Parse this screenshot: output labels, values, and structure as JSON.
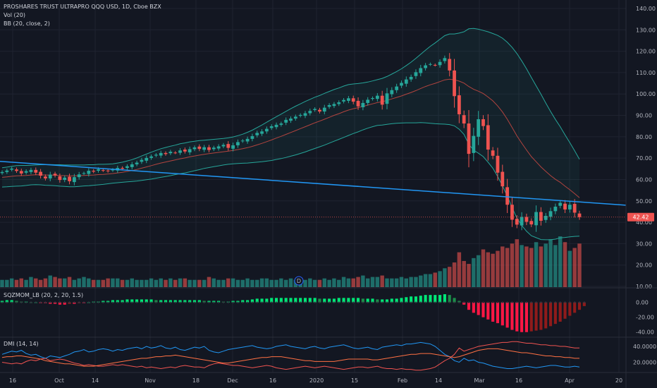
{
  "header": {
    "title": "PROSHARES TRUST ULTRAPRO QQQ USD, 1D, Cboe BZX",
    "vol_label": "Vol (20)",
    "bb_label": "BB (20, close, 2)",
    "sqz_label": "SQZMOM_LB (20, 2, 20, 1.5)",
    "dmi_label": "DMI (14, 14)"
  },
  "colors": {
    "background": "#131722",
    "up": "#26a69a",
    "down": "#ef5350",
    "trendline": "#2196f3",
    "bb_basis": "#b2443f",
    "bb_band": "#26a69a",
    "dmi_plus": "#2196f3",
    "dmi_minus": "#ef5350",
    "adx": "#ff7043"
  },
  "chart_data": [
    {
      "type": "candlestick",
      "title": "PROSHARES TRUST ULTRAPRO QQQ USD, 1D, Cboe BZX",
      "ylim": [
        10,
        140
      ],
      "y_ticks": [
        "140.00",
        "130.00",
        "120.00",
        "110.00",
        "100.00",
        "90.00",
        "80.00",
        "70.00",
        "60.00",
        "50.00",
        "40.00",
        "30.00",
        "20.00",
        "10.00"
      ],
      "x_ticks": [
        "16",
        "Oct",
        "14",
        "Nov",
        "18",
        "Dec",
        "16",
        "2020",
        "15",
        "Feb",
        "14",
        "Mar",
        "16",
        "Apr",
        "20"
      ],
      "last_price": "42.42",
      "closes": [
        63.5,
        64.2,
        65.1,
        64.0,
        62.8,
        63.9,
        64.5,
        63.2,
        61.8,
        60.5,
        62.3,
        61.9,
        59.8,
        60.9,
        59.2,
        61.1,
        62.4,
        63.0,
        64.1,
        63.7,
        64.8,
        64.2,
        63.9,
        64.6,
        65.4,
        65.0,
        66.2,
        67.1,
        67.9,
        69.2,
        70.1,
        70.8,
        71.6,
        72.4,
        71.9,
        73.0,
        72.5,
        73.6,
        73.1,
        74.2,
        75.0,
        74.3,
        75.1,
        73.8,
        74.9,
        75.5,
        76.2,
        74.8,
        76.0,
        77.5,
        78.2,
        79.0,
        80.3,
        81.8,
        82.5,
        83.7,
        84.9,
        85.6,
        86.2,
        87.9,
        88.5,
        89.4,
        90.2,
        91.0,
        92.1,
        93.0,
        91.8,
        93.6,
        94.8,
        95.3,
        96.1,
        97.2,
        98.0,
        96.4,
        94.2,
        95.8,
        97.3,
        98.1,
        99.2,
        95.0,
        100.3,
        101.8,
        103.5,
        105.2,
        106.8,
        108.0,
        110.2,
        112.1,
        113.4,
        114.0,
        113.5,
        115.0,
        116.8,
        111.0,
        99.0,
        90.5,
        86.2,
        72.0,
        80.4,
        88.2,
        85.0,
        74.0,
        71.1,
        63.2,
        56.8,
        48.2,
        41.2,
        38.9,
        42.5,
        40.2,
        39.0,
        44.8,
        40.7,
        43.0,
        45.2,
        47.3,
        49.1,
        46.0,
        48.2,
        44.5,
        42.4
      ],
      "bb_basis": [
        61.0,
        61.2,
        61.5,
        61.7,
        61.8,
        61.9,
        62.1,
        62.2,
        62.2,
        62.1,
        62.1,
        62.0,
        61.9,
        61.8,
        61.7,
        61.7,
        61.8,
        61.9,
        62.0,
        62.1,
        62.3,
        62.4,
        62.6,
        62.8,
        63.1,
        63.4,
        63.8,
        64.2,
        64.7,
        65.3,
        65.9,
        66.5,
        67.1,
        67.7,
        68.2,
        68.7,
        69.2,
        69.7,
        70.1,
        70.6,
        71.0,
        71.4,
        71.8,
        72.1,
        72.4,
        72.7,
        73.0,
        73.3,
        73.6,
        74.0,
        74.4,
        74.9,
        75.5,
        76.2,
        76.9,
        77.7,
        78.5,
        79.4,
        80.2,
        81.1,
        82.0,
        82.9,
        83.8,
        84.7,
        85.6,
        86.5,
        87.3,
        88.2,
        89.1,
        90.0,
        90.8,
        91.7,
        92.5,
        93.1,
        93.6,
        94.2,
        94.8,
        95.4,
        96.0,
        96.4,
        97.0,
        97.7,
        98.4,
        99.1,
        99.9,
        100.7,
        101.6,
        102.6,
        103.5,
        104.3,
        105.0,
        105.8,
        106.6,
        106.9,
        106.6,
        106.0,
        105.1,
        103.5,
        102.2,
        101.3,
        100.2,
        98.6,
        96.8,
        94.4,
        91.6,
        88.2,
        84.3,
        80.4,
        77.0,
        73.8,
        70.7,
        68.3,
        65.9,
        63.8,
        61.8,
        60.1,
        58.7,
        56.9,
        55.2,
        53.4,
        51.5
      ],
      "bb_width": [
        4.5,
        4.6,
        4.7,
        4.8,
        4.8,
        4.7,
        4.6,
        4.6,
        4.7,
        4.8,
        4.9,
        4.9,
        5.0,
        5.0,
        5.1,
        5.1,
        5.0,
        4.9,
        4.9,
        4.8,
        4.8,
        4.7,
        4.6,
        4.5,
        4.6,
        4.7,
        4.9,
        5.1,
        5.4,
        5.7,
        6.0,
        6.3,
        6.5,
        6.7,
        6.8,
        6.9,
        6.9,
        7.0,
        7.0,
        7.0,
        6.9,
        6.8,
        6.6,
        6.5,
        6.4,
        6.3,
        6.2,
        6.2,
        6.3,
        6.5,
        6.8,
        7.2,
        7.6,
        8.1,
        8.6,
        9.1,
        9.6,
        10.0,
        10.4,
        10.8,
        11.1,
        11.4,
        11.6,
        11.8,
        11.9,
        12.0,
        12.0,
        12.1,
        12.1,
        12.1,
        12.0,
        12.0,
        11.9,
        11.6,
        11.3,
        11.0,
        10.8,
        10.7,
        10.7,
        10.9,
        11.2,
        11.6,
        12.1,
        12.7,
        13.4,
        14.2,
        15.1,
        16.0,
        17.0,
        18.0,
        18.9,
        19.8,
        20.7,
        21.2,
        21.5,
        22.5,
        24.0,
        27.0,
        28.5,
        29.0,
        29.5,
        30.5,
        31.5,
        33.0,
        34.5,
        36.0,
        37.5,
        38.5,
        38.5,
        38.0,
        37.0,
        35.5,
        34.0,
        32.0,
        30.0,
        28.0,
        26.0,
        24.0,
        22.0,
        20.0,
        18.0
      ],
      "trendline": [
        68.5,
        48.0
      ]
    },
    {
      "type": "bar",
      "title": "Vol (20)",
      "values": [
        5,
        5,
        6,
        5,
        6,
        5,
        7,
        6,
        5,
        6,
        8,
        7,
        6,
        6,
        7,
        5,
        6,
        7,
        6,
        5,
        5,
        5,
        6,
        6,
        6,
        5,
        5,
        6,
        5,
        5,
        5,
        6,
        5,
        6,
        5,
        6,
        5,
        6,
        6,
        5,
        5,
        5,
        5,
        7,
        6,
        5,
        5,
        6,
        6,
        5,
        5,
        6,
        5,
        5,
        6,
        6,
        5,
        5,
        6,
        5,
        6,
        5,
        6,
        5,
        6,
        5,
        5,
        6,
        5,
        6,
        5,
        7,
        6,
        6,
        7,
        8,
        6,
        7,
        7,
        8,
        6,
        6,
        6,
        7,
        6,
        7,
        7,
        8,
        9,
        9,
        10,
        11,
        13,
        14,
        17,
        24,
        18,
        16,
        20,
        22,
        26,
        24,
        23,
        25,
        28,
        27,
        30,
        33,
        29,
        28,
        27,
        31,
        28,
        30,
        33,
        29,
        35,
        31,
        25,
        27,
        30
      ],
      "max": 35
    },
    {
      "type": "bar",
      "title": "SQZMOM_LB (20, 2, 20, 1.5)",
      "ylim": [
        -45,
        12
      ],
      "y_ticks": [
        "0.00",
        "-20.00",
        "-40.00"
      ],
      "values": [
        2,
        3,
        3,
        2,
        1,
        1,
        0,
        0,
        -1,
        -1,
        -2,
        -2,
        -3,
        -3,
        -2,
        -2,
        -1,
        -1,
        0,
        1,
        1,
        2,
        2,
        3,
        3,
        3,
        4,
        4,
        4,
        4,
        4,
        4,
        3,
        3,
        3,
        3,
        3,
        3,
        3,
        3,
        3,
        3,
        2,
        2,
        2,
        2,
        1,
        1,
        2,
        2,
        3,
        3,
        4,
        5,
        5,
        5,
        6,
        6,
        6,
        6,
        6,
        6,
        6,
        6,
        6,
        6,
        5,
        5,
        5,
        5,
        6,
        6,
        6,
        6,
        6,
        5,
        5,
        5,
        4,
        4,
        4,
        5,
        5,
        6,
        7,
        8,
        8,
        9,
        10,
        10,
        10,
        10,
        11,
        10,
        6,
        2,
        -3,
        -10,
        -14,
        -17,
        -20,
        -23,
        -26,
        -28,
        -31,
        -34,
        -37,
        -39,
        -40,
        -40,
        -39,
        -38,
        -37,
        -35,
        -32,
        -29,
        -26,
        -22,
        -18,
        -14,
        -10,
        -5
      ],
      "squeeze_dots": "on"
    },
    {
      "type": "line",
      "title": "DMI (14, 14)",
      "ylim": [
        8,
        48
      ],
      "y_ticks": [
        "40.0000",
        "20.0000"
      ],
      "series": [
        {
          "values": [
            30,
            32,
            34,
            33,
            35,
            31,
            29,
            30,
            27,
            25,
            28,
            27,
            26,
            28,
            30,
            33,
            34,
            36,
            33,
            34,
            36,
            37,
            36,
            34,
            36,
            35,
            37,
            38,
            39,
            37,
            40,
            38,
            39,
            41,
            38,
            37,
            39,
            36,
            35,
            37,
            39,
            38,
            40,
            35,
            33,
            32,
            34,
            36,
            37,
            38,
            39,
            40,
            41,
            39,
            38,
            37,
            38,
            40,
            41,
            42,
            40,
            39,
            38,
            37,
            39,
            40,
            38,
            37,
            39,
            40,
            41,
            42,
            40,
            38,
            37,
            38,
            39,
            37,
            36,
            39,
            40,
            41,
            42,
            41,
            43,
            43,
            44,
            45,
            44,
            43,
            40,
            35,
            30,
            27,
            22,
            20,
            25,
            22,
            23,
            20,
            19,
            17,
            15,
            14,
            13,
            12,
            12,
            13,
            14,
            15,
            14,
            13,
            14,
            15,
            16,
            16,
            15,
            14,
            14,
            15,
            14
          ]
        },
        {
          "values": [
            20,
            19,
            18,
            19,
            18,
            21,
            23,
            22,
            24,
            25,
            22,
            23,
            24,
            23,
            21,
            19,
            18,
            16,
            17,
            16,
            15,
            15,
            16,
            17,
            16,
            17,
            16,
            15,
            14,
            15,
            13,
            14,
            13,
            12,
            13,
            14,
            13,
            15,
            16,
            15,
            14,
            14,
            13,
            16,
            18,
            19,
            18,
            17,
            16,
            16,
            15,
            14,
            13,
            14,
            15,
            16,
            15,
            13,
            12,
            11,
            12,
            13,
            14,
            15,
            14,
            13,
            14,
            15,
            14,
            13,
            12,
            11,
            12,
            13,
            14,
            14,
            13,
            14,
            15,
            13,
            12,
            12,
            11,
            12,
            11,
            11,
            10,
            10,
            11,
            12,
            14,
            18,
            22,
            25,
            30,
            38,
            34,
            36,
            38,
            40,
            41,
            42,
            43,
            44,
            45,
            45,
            46,
            46,
            45,
            44,
            44,
            43,
            42,
            42,
            41,
            41,
            40,
            40,
            39,
            38,
            38
          ]
        },
        {
          "values": [
            26,
            27,
            27,
            28,
            28,
            27,
            26,
            25,
            24,
            22,
            21,
            20,
            19,
            18,
            18,
            17,
            16,
            15,
            15,
            15,
            16,
            17,
            18,
            19,
            20,
            21,
            22,
            23,
            24,
            25,
            25,
            26,
            27,
            27,
            28,
            28,
            29,
            28,
            27,
            26,
            25,
            24,
            23,
            22,
            21,
            20,
            19,
            19,
            20,
            21,
            22,
            23,
            24,
            25,
            26,
            26,
            27,
            27,
            27,
            26,
            25,
            24,
            23,
            22,
            22,
            21,
            21,
            21,
            21,
            21,
            22,
            23,
            24,
            24,
            24,
            24,
            24,
            23,
            23,
            24,
            25,
            26,
            27,
            28,
            29,
            30,
            30,
            31,
            31,
            31,
            30,
            29,
            28,
            27,
            26,
            27,
            29,
            31,
            33,
            35,
            36,
            37,
            37,
            37,
            36,
            35,
            34,
            33,
            32,
            32,
            31,
            30,
            29,
            28,
            28,
            27,
            27,
            26,
            26,
            25,
            25
          ]
        }
      ]
    }
  ]
}
